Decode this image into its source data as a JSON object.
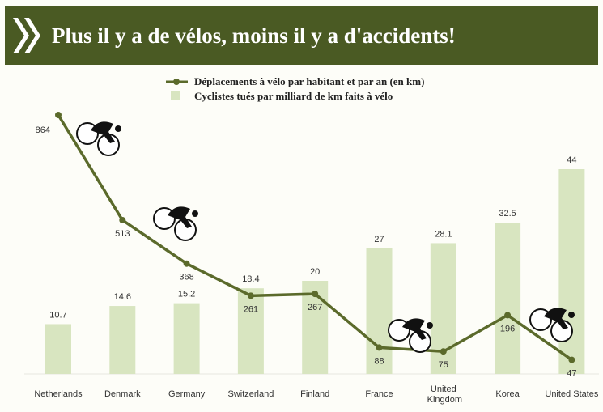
{
  "chart_data": {
    "type": "bar-line",
    "title": "Plus il y a de vélos, moins il y a d'accidents!",
    "categories": [
      "Netherlands",
      "Denmark",
      "Germany",
      "Switzerland",
      "Finland",
      "France",
      "United Kingdom",
      "Korea",
      "United States"
    ],
    "series": [
      {
        "name": "Déplacements à vélo par habitant et par an (en km)",
        "type": "line",
        "color": "#5b6a2b",
        "axis": "y2",
        "values": [
          864,
          513,
          368,
          261,
          267,
          88,
          75,
          196,
          47
        ]
      },
      {
        "name": "Cyclistes tués par milliard de km faits à vélo",
        "type": "bar",
        "color": "#d8e5c0",
        "values": [
          10.7,
          14.6,
          15.2,
          18.4,
          20,
          27,
          28.1,
          32.5,
          44
        ]
      }
    ]
  }
}
